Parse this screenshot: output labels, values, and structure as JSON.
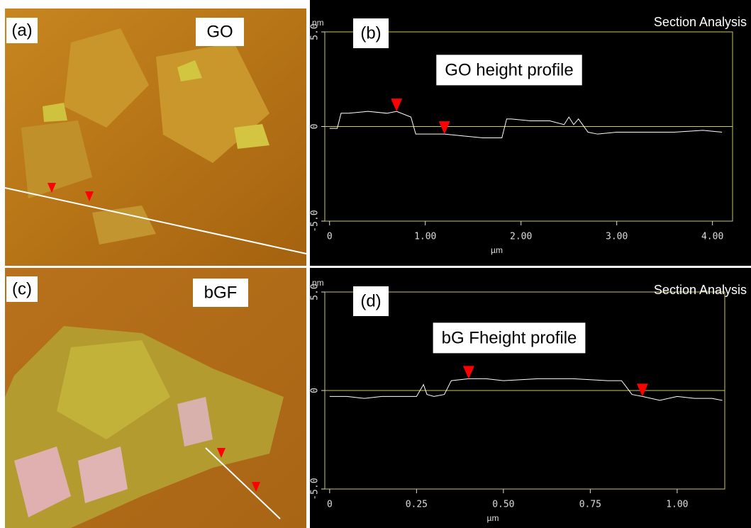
{
  "images": [
    {
      "label": "(a)",
      "tag": "GO"
    },
    {
      "label": "(c)",
      "tag": "bGF"
    }
  ],
  "chart_data": [
    {
      "type": "line",
      "panel": "(b)",
      "title": "Section Analysis",
      "annotation": "GO height profile",
      "y_label": "nm",
      "x_label": "µm",
      "xlim": [
        -0.05,
        4.21
      ],
      "ylim": [
        -5,
        5
      ],
      "xticks": [
        0,
        {
          "value": 1,
          "label": "1.00"
        },
        {
          "value": 2,
          "label": "2.00"
        },
        {
          "value": 3,
          "label": "3.00"
        },
        {
          "value": 4,
          "label": "4.00"
        }
      ],
      "yticks": [
        {
          "value": -5,
          "label": "-5.0"
        },
        0,
        {
          "value": 5,
          "label": "5.0"
        }
      ],
      "x": [
        0,
        0.08,
        0.12,
        0.2,
        0.4,
        0.6,
        0.7,
        0.8,
        0.85,
        0.9,
        1.0,
        1.2,
        1.4,
        1.6,
        1.8,
        1.85,
        1.9,
        2.1,
        2.3,
        2.45,
        2.5,
        2.55,
        2.6,
        2.7,
        2.8,
        3.0,
        3.3,
        3.6,
        3.9,
        4.1
      ],
      "series": [
        {
          "color": "#ffffff",
          "values": [
            -0.1,
            -0.1,
            0.7,
            0.7,
            0.8,
            0.7,
            0.8,
            0.6,
            0.5,
            -0.4,
            -0.4,
            -0.4,
            -0.5,
            -0.6,
            -0.6,
            0.4,
            0.4,
            0.3,
            0.3,
            0.1,
            0.5,
            0.1,
            0.4,
            -0.3,
            -0.4,
            -0.3,
            -0.3,
            -0.3,
            -0.2,
            -0.3
          ]
        }
      ],
      "markers": {
        "color": "#ff0000",
        "x": [
          0.7,
          1.2
        ],
        "values": [
          0.8,
          -0.4
        ]
      }
    },
    {
      "type": "line",
      "panel": "(d)",
      "title": "Section Analysis",
      "annotation": "bG Fheight profile",
      "y_label": "nm",
      "x_label": "µm",
      "xlim": [
        -0.014,
        1.137
      ],
      "ylim": [
        -5,
        5
      ],
      "xticks": [
        0,
        0.25,
        {
          "value": 0.5,
          "label": "0.50"
        },
        0.75,
        {
          "value": 1,
          "label": "1.00"
        }
      ],
      "yticks": [
        {
          "value": -5,
          "label": "-5.0"
        },
        0,
        {
          "value": 5,
          "label": "5.0"
        }
      ],
      "x": [
        0,
        0.05,
        0.1,
        0.15,
        0.2,
        0.25,
        0.27,
        0.28,
        0.3,
        0.33,
        0.35,
        0.4,
        0.45,
        0.5,
        0.6,
        0.7,
        0.8,
        0.84,
        0.87,
        0.9,
        0.95,
        1.0,
        1.05,
        1.1,
        1.13
      ],
      "series": [
        {
          "color": "#ffffff",
          "values": [
            -0.3,
            -0.3,
            -0.4,
            -0.3,
            -0.3,
            -0.3,
            0.3,
            -0.2,
            -0.3,
            -0.2,
            0.5,
            0.6,
            0.6,
            0.5,
            0.6,
            0.6,
            0.5,
            0.5,
            -0.2,
            -0.3,
            -0.5,
            -0.3,
            -0.4,
            -0.4,
            -0.5
          ]
        }
      ],
      "markers": {
        "color": "#ff0000",
        "x": [
          0.4,
          0.9
        ],
        "values": [
          0.6,
          -0.3
        ]
      }
    }
  ]
}
